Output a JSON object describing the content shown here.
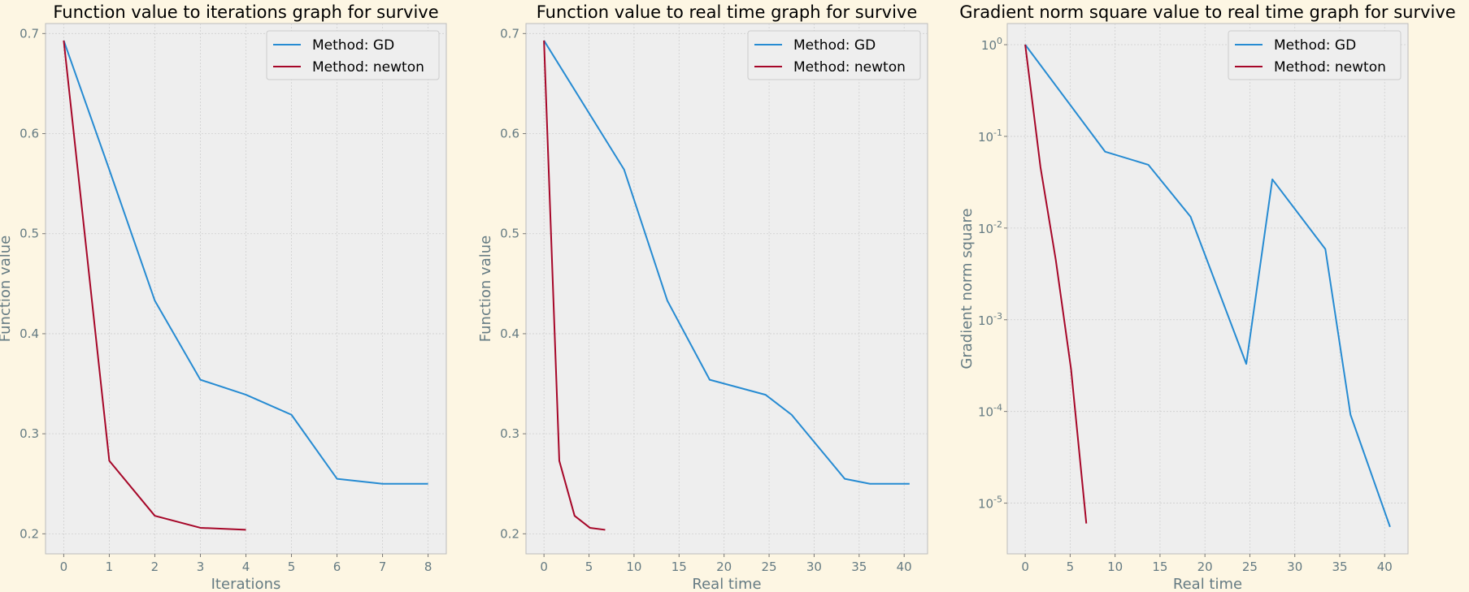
{
  "chart_data": [
    {
      "type": "line",
      "title": "Function value to iterations graph for survive",
      "xlabel": "Iterations",
      "ylabel": "Function value",
      "xlim": [
        -0.4,
        8.4
      ],
      "ylim": [
        0.18,
        0.71
      ],
      "xticks": [
        0,
        1,
        2,
        3,
        4,
        5,
        6,
        7,
        8
      ],
      "xtick_labels": [
        "0",
        "1",
        "2",
        "3",
        "4",
        "5",
        "6",
        "7",
        "8"
      ],
      "yticks": [
        0.2,
        0.3,
        0.4,
        0.5,
        0.6,
        0.7
      ],
      "ytick_labels": [
        "0.2",
        "0.3",
        "0.4",
        "0.5",
        "0.6",
        "0.7"
      ],
      "yscale": "linear",
      "grid": true,
      "legend": "top-right",
      "series": [
        {
          "name": "Method: GD",
          "color": "#268bd2",
          "x": [
            0,
            1,
            2,
            3,
            4,
            5,
            6,
            7,
            8
          ],
          "y": [
            0.693,
            0.564,
            0.433,
            0.354,
            0.339,
            0.319,
            0.255,
            0.25,
            0.25
          ]
        },
        {
          "name": "Method: newton",
          "color": "#a60628",
          "x": [
            0,
            1,
            2,
            3,
            4
          ],
          "y": [
            0.693,
            0.273,
            0.218,
            0.206,
            0.204
          ]
        }
      ]
    },
    {
      "type": "line",
      "title": "Function value to real time graph for survive",
      "xlabel": "Real time",
      "ylabel": "Function value",
      "xlim": [
        -2.0,
        42.6
      ],
      "ylim": [
        0.18,
        0.71
      ],
      "xticks": [
        0,
        5,
        10,
        15,
        20,
        25,
        30,
        35,
        40
      ],
      "xtick_labels": [
        "0",
        "5",
        "10",
        "15",
        "20",
        "25",
        "30",
        "35",
        "40"
      ],
      "yticks": [
        0.2,
        0.3,
        0.4,
        0.5,
        0.6,
        0.7
      ],
      "ytick_labels": [
        "0.2",
        "0.3",
        "0.4",
        "0.5",
        "0.6",
        "0.7"
      ],
      "yscale": "linear",
      "grid": true,
      "legend": "top-right",
      "series": [
        {
          "name": "Method: GD",
          "color": "#268bd2",
          "x": [
            0,
            8.9,
            13.7,
            18.4,
            24.6,
            27.5,
            33.4,
            36.2,
            40.6
          ],
          "y": [
            0.693,
            0.564,
            0.433,
            0.354,
            0.339,
            0.319,
            0.255,
            0.25,
            0.25
          ]
        },
        {
          "name": "Method: newton",
          "color": "#a60628",
          "x": [
            0,
            1.7,
            3.4,
            5.1,
            6.8
          ],
          "y": [
            0.693,
            0.273,
            0.218,
            0.206,
            0.204
          ]
        }
      ]
    },
    {
      "type": "line",
      "title": "Gradient norm square value to real time graph for survive",
      "xlabel": "Real time",
      "ylabel": "Gradient norm square",
      "xlim": [
        -2.0,
        42.6
      ],
      "ylim": [
        2.8e-06,
        1.7
      ],
      "xticks": [
        0,
        5,
        10,
        15,
        20,
        25,
        30,
        35,
        40
      ],
      "xtick_labels": [
        "0",
        "5",
        "10",
        "15",
        "20",
        "25",
        "30",
        "35",
        "40"
      ],
      "yticks": [
        1e-05,
        0.0001,
        0.001,
        0.01,
        0.1,
        1
      ],
      "ytick_mantissa": [
        "10",
        "10",
        "10",
        "10",
        "10",
        "10"
      ],
      "ytick_exponents": [
        "-5",
        "-4",
        "-3",
        "-2",
        "-1",
        "0"
      ],
      "yscale": "log",
      "grid": true,
      "legend": "top-right",
      "series": [
        {
          "name": "Method: GD",
          "color": "#268bd2",
          "x": [
            0,
            8.9,
            13.7,
            18.4,
            24.6,
            27.5,
            33.4,
            36.2,
            40.6
          ],
          "y": [
            1.0,
            0.068,
            0.049,
            0.0133,
            0.00033,
            0.034,
            0.0059,
            9.2e-05,
            5.5e-06
          ]
        },
        {
          "name": "Method: newton",
          "color": "#a60628",
          "x": [
            0,
            1.7,
            3.4,
            5.1,
            6.8
          ],
          "y": [
            1.0,
            0.046,
            0.0045,
            0.00029,
            6e-06
          ]
        }
      ]
    }
  ]
}
